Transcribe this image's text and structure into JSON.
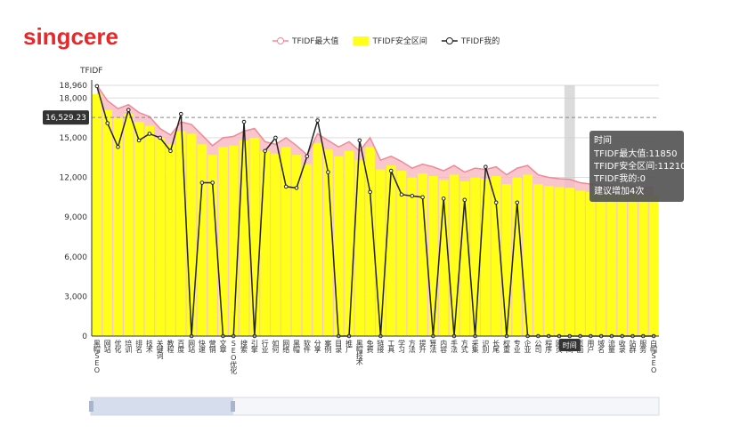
{
  "brand": "singcere",
  "chart_data": {
    "type": "bar-line",
    "ylabel": "TFIDF",
    "categories": [
      "黑帽SEO",
      "网站",
      "优化",
      "培训",
      "排名",
      "技术",
      "关键词",
      "教程",
      "百度",
      "网站",
      "快速",
      "营销",
      "文章",
      "SEO优化",
      "搜索",
      "引擎",
      "行业",
      "如何",
      "网络",
      "黑帽",
      "软件",
      "分享",
      "案例",
      "目录",
      "推广",
      "黑帽技术",
      "免费",
      "链接",
      "工具",
      "学习",
      "方法",
      "提升",
      "算法",
      "内容",
      "手法",
      "方式",
      "采集",
      "识别",
      "长尾",
      "权重",
      "专业",
      "企业",
      "公司",
      "程序",
      "网页",
      "时间",
      "页面",
      "用户",
      "域名",
      "流量",
      "收录",
      "站群",
      "服务",
      "白帽SEO"
    ],
    "series": [
      {
        "name": "TFIDF最大值",
        "color": "#f08a96",
        "values": [
          18960,
          17800,
          17200,
          17500,
          16900,
          16600,
          15700,
          15200,
          16200,
          16000,
          15200,
          14400,
          15000,
          15100,
          15500,
          15700,
          14700,
          14500,
          15000,
          14400,
          13700,
          15300,
          14800,
          14300,
          14700,
          14000,
          15000,
          13300,
          13600,
          13200,
          12700,
          13000,
          12800,
          12500,
          12900,
          12400,
          12700,
          12600,
          12800,
          12200,
          12700,
          12900,
          12200,
          12000,
          11900,
          11850,
          11600,
          11500,
          11400,
          11400,
          11300,
          11300,
          11200,
          11200
        ]
      },
      {
        "name": "TFIDF安全区间",
        "color": "#ffff1a",
        "values": [
          18300,
          17100,
          16500,
          16800,
          16200,
          15900,
          15000,
          14500,
          15500,
          15300,
          14500,
          13700,
          14300,
          14400,
          14800,
          15000,
          14000,
          13800,
          14300,
          13700,
          13000,
          14600,
          14100,
          13600,
          14000,
          13300,
          14300,
          12600,
          12900,
          12500,
          12000,
          12300,
          12100,
          11800,
          12200,
          11700,
          12000,
          11900,
          12100,
          11500,
          12000,
          12200,
          11500,
          11350,
          11260,
          11210,
          11000,
          10900,
          10800,
          10800,
          10700,
          10700,
          10600,
          10600
        ]
      },
      {
        "name": "TFIDF我的",
        "color": "#222222",
        "values": [
          18900,
          16100,
          14300,
          17100,
          14800,
          15300,
          15000,
          14000,
          16800,
          0,
          11600,
          11600,
          0,
          0,
          16200,
          0,
          14000,
          15000,
          11300,
          11200,
          13600,
          16300,
          12400,
          0,
          0,
          14800,
          10900,
          0,
          12500,
          10700,
          10600,
          10500,
          0,
          10400,
          0,
          10300,
          0,
          12800,
          10100,
          0,
          10100,
          0,
          0,
          0,
          0,
          0,
          0,
          0,
          0,
          0,
          0,
          0,
          0,
          0
        ]
      }
    ],
    "ylim": [
      0,
      18960
    ],
    "yticks": [
      0,
      {
        "value": 3000,
        "label": "3,000"
      },
      {
        "value": 6000,
        "label": "6,000"
      },
      {
        "value": 9000,
        "label": "9,000"
      },
      {
        "value": 12000,
        "label": "12,000"
      },
      {
        "value": 15000,
        "label": "15,000"
      },
      {
        "value": 18000,
        "label": "18,000"
      },
      {
        "value": 18960,
        "label": "18,960"
      }
    ],
    "grid": true,
    "average_line": {
      "value": 16529.23,
      "label": "16,529.23"
    },
    "highlight_index": 45,
    "tooltip": {
      "title": "时间",
      "lines": [
        "TFIDF最大值:11850",
        "TFIDF安全区间:11210",
        "TFIDF我的:0",
        "建议增加4次"
      ]
    }
  }
}
